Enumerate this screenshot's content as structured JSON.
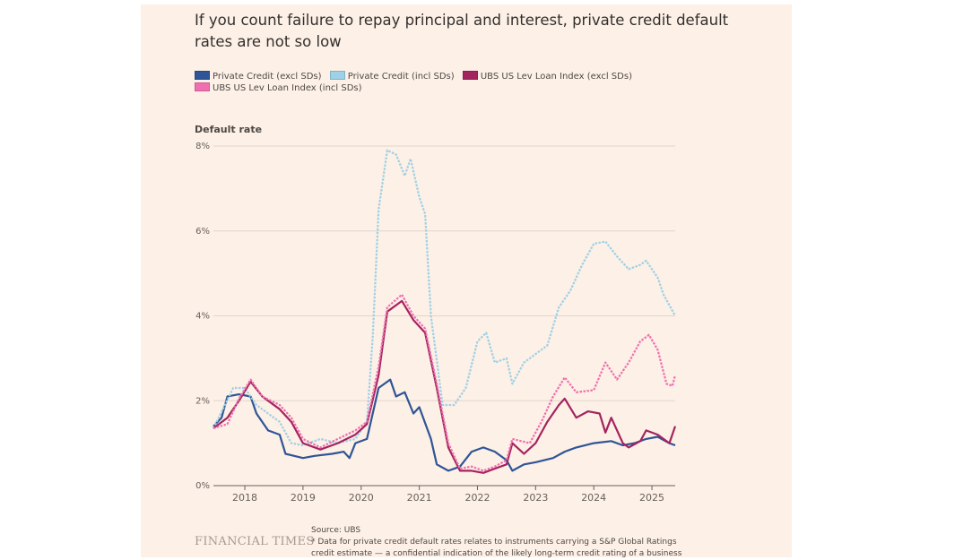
{
  "title": "If you count failure to repay principal and interest, private credit default rates are not so low",
  "source": "Source: UBS",
  "footnote": "* Data for private credit default rates relates to instruments carrying a S&P Global Ratings credit estimate — a confidential indication of the likely long-term credit rating of a business",
  "brand": "FINANCIAL TIMES",
  "chart_data": {
    "type": "line",
    "title": "If you count failure to repay principal and interest, private credit default rates are not so low",
    "ylabel": "Default rate",
    "xlabel": "",
    "xlim": [
      2017.46,
      2025.4
    ],
    "ylim": [
      0,
      8
    ],
    "yticks": [
      0,
      2,
      4,
      6,
      8
    ],
    "ytick_labels": [
      "0%",
      "2%",
      "4%",
      "6%",
      "8%"
    ],
    "xticks": [
      2018,
      2019,
      2020,
      2021,
      2022,
      2023,
      2024,
      2025
    ],
    "xtick_labels": [
      "2018",
      "2019",
      "2020",
      "2021",
      "2022",
      "2023",
      "2024",
      "2025"
    ],
    "grid": true,
    "legend_position": "top-left",
    "series": [
      {
        "name": "Private Credit (excl SDs)",
        "color": "#2e5596",
        "dash": false,
        "x": [
          2017.46,
          2017.6,
          2017.7,
          2017.9,
          2018.1,
          2018.2,
          2018.4,
          2018.6,
          2018.7,
          2019.0,
          2019.2,
          2019.5,
          2019.7,
          2019.8,
          2019.9,
          2020.1,
          2020.3,
          2020.5,
          2020.6,
          2020.75,
          2020.9,
          2021.0,
          2021.2,
          2021.3,
          2021.5,
          2021.7,
          2021.9,
          2022.1,
          2022.3,
          2022.5,
          2022.6,
          2022.8,
          2023.0,
          2023.3,
          2023.5,
          2023.7,
          2024.0,
          2024.3,
          2024.5,
          2024.7,
          2024.9,
          2025.1,
          2025.3,
          2025.4
        ],
        "y": [
          1.4,
          1.6,
          2.1,
          2.15,
          2.1,
          1.7,
          1.3,
          1.2,
          0.75,
          0.65,
          0.7,
          0.75,
          0.8,
          0.65,
          1.0,
          1.1,
          2.3,
          2.5,
          2.1,
          2.2,
          1.7,
          1.85,
          1.1,
          0.5,
          0.35,
          0.45,
          0.8,
          0.9,
          0.8,
          0.6,
          0.35,
          0.5,
          0.55,
          0.65,
          0.8,
          0.9,
          1.0,
          1.05,
          0.95,
          1.0,
          1.1,
          1.15,
          1.0,
          0.95
        ]
      },
      {
        "name": "Private Credit (incl SDs)",
        "color": "#9dd1e6",
        "dash": true,
        "x": [
          2017.46,
          2017.8,
          2018.0,
          2018.2,
          2018.4,
          2018.6,
          2018.8,
          2019.0,
          2019.3,
          2019.6,
          2019.9,
          2020.1,
          2020.2,
          2020.3,
          2020.45,
          2020.6,
          2020.75,
          2020.85,
          2021.0,
          2021.1,
          2021.2,
          2021.4,
          2021.6,
          2021.8,
          2022.0,
          2022.15,
          2022.3,
          2022.5,
          2022.6,
          2022.8,
          2023.0,
          2023.2,
          2023.4,
          2023.6,
          2023.8,
          2024.0,
          2024.2,
          2024.4,
          2024.6,
          2024.8,
          2024.9,
          2025.1,
          2025.2,
          2025.4
        ],
        "y": [
          1.35,
          2.3,
          2.3,
          1.9,
          1.7,
          1.5,
          1.0,
          0.95,
          1.1,
          1.0,
          1.1,
          1.5,
          3.5,
          6.5,
          7.9,
          7.8,
          7.3,
          7.7,
          6.8,
          6.4,
          4.0,
          1.9,
          1.9,
          2.3,
          3.4,
          3.6,
          2.9,
          3.0,
          2.4,
          2.9,
          3.1,
          3.3,
          4.2,
          4.6,
          5.2,
          5.7,
          5.75,
          5.4,
          5.1,
          5.2,
          5.3,
          4.9,
          4.5,
          4.0
        ]
      },
      {
        "name": "UBS US Lev Loan Index (excl SDs)",
        "color": "#a3245e",
        "dash": false,
        "x": [
          2017.46,
          2017.7,
          2017.9,
          2018.1,
          2018.3,
          2018.6,
          2018.8,
          2019.0,
          2019.3,
          2019.6,
          2019.9,
          2020.1,
          2020.3,
          2020.45,
          2020.7,
          2020.9,
          2021.1,
          2021.3,
          2021.5,
          2021.7,
          2021.9,
          2022.1,
          2022.3,
          2022.5,
          2022.6,
          2022.8,
          2023.0,
          2023.2,
          2023.4,
          2023.5,
          2023.7,
          2023.9,
          2024.1,
          2024.2,
          2024.3,
          2024.5,
          2024.6,
          2024.8,
          2024.9,
          2025.1,
          2025.3,
          2025.4
        ],
        "y": [
          1.35,
          1.6,
          2.0,
          2.45,
          2.1,
          1.8,
          1.5,
          1.0,
          0.85,
          1.0,
          1.2,
          1.45,
          2.6,
          4.1,
          4.35,
          3.9,
          3.6,
          2.3,
          0.9,
          0.35,
          0.35,
          0.3,
          0.4,
          0.5,
          1.0,
          0.75,
          1.0,
          1.5,
          1.9,
          2.05,
          1.6,
          1.75,
          1.7,
          1.25,
          1.6,
          1.0,
          0.9,
          1.05,
          1.3,
          1.2,
          1.0,
          1.4
        ]
      },
      {
        "name": "UBS US Lev Loan Index (incl SDs)",
        "color": "#ef6fb0",
        "dash": true,
        "x": [
          2017.46,
          2017.7,
          2017.9,
          2018.1,
          2018.3,
          2018.6,
          2018.8,
          2019.0,
          2019.3,
          2019.6,
          2019.9,
          2020.1,
          2020.3,
          2020.45,
          2020.7,
          2020.9,
          2021.1,
          2021.3,
          2021.5,
          2021.7,
          2021.9,
          2022.1,
          2022.3,
          2022.5,
          2022.6,
          2022.9,
          2023.1,
          2023.3,
          2023.5,
          2023.7,
          2024.0,
          2024.2,
          2024.4,
          2024.6,
          2024.8,
          2024.95,
          2025.1,
          2025.25,
          2025.35,
          2025.4
        ],
        "y": [
          1.35,
          1.45,
          2.05,
          2.5,
          2.1,
          1.9,
          1.6,
          1.1,
          0.9,
          1.1,
          1.3,
          1.5,
          2.8,
          4.2,
          4.5,
          4.0,
          3.7,
          2.4,
          1.0,
          0.4,
          0.45,
          0.35,
          0.45,
          0.6,
          1.1,
          1.0,
          1.5,
          2.1,
          2.55,
          2.2,
          2.25,
          2.9,
          2.5,
          2.9,
          3.4,
          3.55,
          3.2,
          2.4,
          2.35,
          2.6
        ]
      }
    ]
  }
}
